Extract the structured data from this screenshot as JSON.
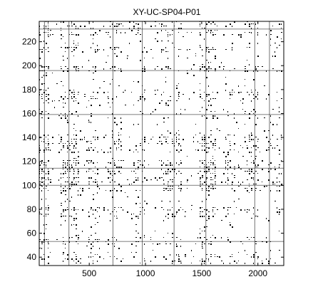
{
  "chart_data": {
    "type": "heatmap",
    "subtype": "binary recurrence plot",
    "title": "XY-UC-SP04-P01",
    "xlabel": "",
    "ylabel": "",
    "xlim": [
      55,
      2230
    ],
    "ylim": [
      33,
      237
    ],
    "x_ticks": [
      500,
      1000,
      1500,
      2000
    ],
    "y_ticks": [
      40,
      60,
      80,
      100,
      120,
      140,
      160,
      180,
      200,
      220
    ],
    "x_tick_labels": [
      "500",
      "1000",
      "1500",
      "2000"
    ],
    "y_tick_labels": [
      "40",
      "60",
      "80",
      "100",
      "120",
      "140",
      "160",
      "180",
      "200",
      "220"
    ],
    "colors": {
      "recurrence": "#000000",
      "background": "#ffffff"
    },
    "grid": false,
    "legend": "none"
  }
}
